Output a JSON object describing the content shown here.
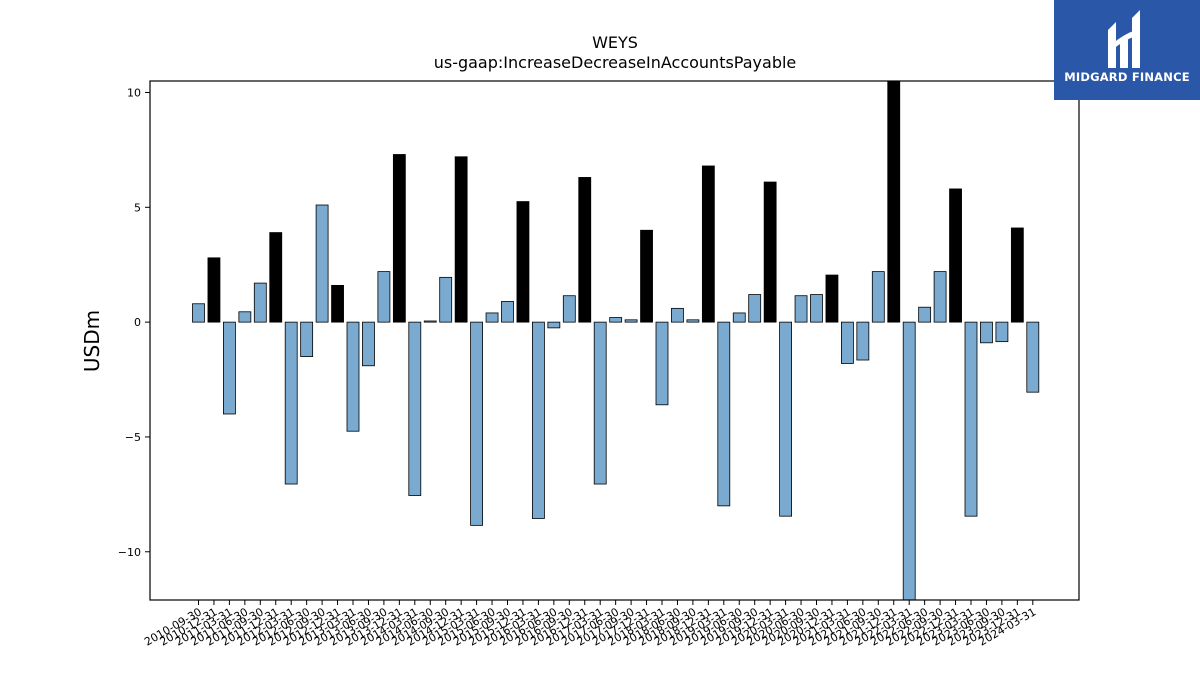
{
  "brand": {
    "name": "MIDGARD FINANCE",
    "bg_color": "#2a57a8"
  },
  "chart_data": {
    "type": "bar",
    "title": "WEYS",
    "subtitle": "us-gaap:IncreaseDecreaseInAccountsPayable",
    "xlabel": "",
    "ylabel": "USDm",
    "ylim": [
      -12.1,
      10.5
    ],
    "yticks": [
      -10,
      -5,
      0,
      5,
      10
    ],
    "grid": false,
    "colors": {
      "quarter": "#7aaad0",
      "fiscal_year_end": "#000000"
    },
    "categories": [
      "2010-09-30",
      "2010-12-31",
      "2011-03-31",
      "2011-06-30",
      "2011-09-30",
      "2011-12-31",
      "2012-03-31",
      "2012-06-30",
      "2012-09-30",
      "2012-12-31",
      "2013-03-31",
      "2013-06-30",
      "2013-09-30",
      "2013-12-31",
      "2014-03-31",
      "2014-06-30",
      "2014-09-30",
      "2014-12-31",
      "2015-03-31",
      "2015-06-30",
      "2015-09-30",
      "2015-12-31",
      "2016-03-31",
      "2016-06-30",
      "2016-09-30",
      "2016-12-31",
      "2017-03-31",
      "2017-06-30",
      "2017-09-30",
      "2017-12-31",
      "2018-03-31",
      "2018-06-30",
      "2018-09-30",
      "2018-12-31",
      "2019-03-31",
      "2019-06-30",
      "2019-09-30",
      "2019-12-31",
      "2020-03-31",
      "2020-06-30",
      "2020-09-30",
      "2020-12-31",
      "2021-03-31",
      "2021-06-30",
      "2021-09-30",
      "2021-12-31",
      "2022-03-31",
      "2022-06-30",
      "2022-09-30",
      "2022-12-31",
      "2023-03-31",
      "2023-06-30",
      "2023-09-30",
      "2023-12-31",
      "2024-03-31"
    ],
    "values": [
      0.8,
      2.8,
      -4.0,
      0.45,
      1.7,
      3.9,
      -7.05,
      -1.5,
      5.1,
      1.6,
      -4.75,
      -1.9,
      2.2,
      7.3,
      -7.55,
      0.05,
      1.95,
      7.2,
      -8.85,
      0.4,
      0.9,
      5.25,
      -8.55,
      -0.25,
      1.15,
      6.3,
      -7.05,
      0.2,
      0.1,
      4.0,
      -3.6,
      0.6,
      0.1,
      6.8,
      -8.0,
      0.4,
      1.2,
      6.1,
      -8.45,
      1.15,
      1.2,
      2.05,
      -1.8,
      -1.65,
      2.2,
      10.5,
      -12.1,
      0.65,
      2.2,
      5.8,
      -8.45,
      -0.9,
      -0.85,
      4.1,
      -3.05
    ],
    "fiscal_year_end_flags": [
      0,
      1,
      0,
      0,
      0,
      1,
      0,
      0,
      0,
      1,
      0,
      0,
      0,
      1,
      0,
      0,
      0,
      1,
      0,
      0,
      0,
      1,
      0,
      0,
      0,
      1,
      0,
      0,
      0,
      1,
      0,
      0,
      0,
      1,
      0,
      0,
      0,
      1,
      0,
      0,
      0,
      1,
      0,
      0,
      0,
      1,
      0,
      0,
      0,
      1,
      0,
      0,
      0,
      1,
      0
    ]
  }
}
